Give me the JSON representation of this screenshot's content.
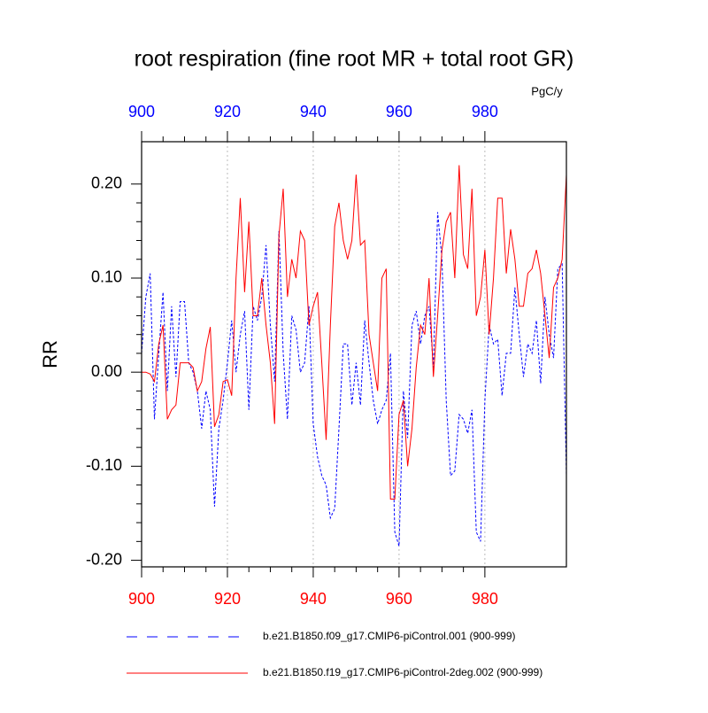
{
  "chart_data": {
    "type": "line",
    "title": "root respiration (fine root MR + total root GR)",
    "units": "PgC/y",
    "y_label": "RR",
    "x": [
      900,
      901,
      902,
      903,
      904,
      905,
      906,
      907,
      908,
      909,
      910,
      911,
      912,
      913,
      914,
      915,
      916,
      917,
      918,
      919,
      920,
      921,
      922,
      923,
      924,
      925,
      926,
      927,
      928,
      929,
      930,
      931,
      932,
      933,
      934,
      935,
      936,
      937,
      938,
      939,
      940,
      941,
      942,
      943,
      944,
      945,
      946,
      947,
      948,
      949,
      950,
      951,
      952,
      953,
      954,
      955,
      956,
      957,
      958,
      959,
      960,
      961,
      962,
      963,
      964,
      965,
      966,
      967,
      968,
      969,
      970,
      971,
      972,
      973,
      974,
      975,
      976,
      977,
      978,
      979,
      980,
      981,
      982,
      983,
      984,
      985,
      986,
      987,
      988,
      989,
      990,
      991,
      992,
      993,
      994,
      995,
      996,
      997,
      998,
      999
    ],
    "series": [
      {
        "name": "b.e21.B1850.f09_g17.CMIP6-piControl.001 (900-999)",
        "color": "#0000ff",
        "dash": true,
        "values": [
          0.02,
          0.08,
          0.105,
          -0.05,
          0.02,
          0.085,
          -0.02,
          0.07,
          -0.005,
          0.075,
          0.075,
          0.01,
          0.0,
          -0.02,
          -0.06,
          -0.02,
          -0.04,
          -0.143,
          -0.06,
          -0.03,
          0.01,
          0.055,
          0.0,
          0.04,
          0.065,
          -0.04,
          0.07,
          0.055,
          0.08,
          0.135,
          0.05,
          -0.01,
          0.15,
          0.02,
          -0.05,
          0.06,
          0.045,
          0.0,
          0.01,
          0.07,
          -0.055,
          -0.09,
          -0.11,
          -0.12,
          -0.155,
          -0.145,
          -0.06,
          0.03,
          0.03,
          -0.035,
          0.01,
          -0.035,
          0.055,
          0.01,
          -0.03,
          -0.055,
          -0.04,
          -0.03,
          0.02,
          -0.17,
          -0.185,
          -0.02,
          -0.07,
          0.05,
          0.065,
          0.03,
          0.06,
          0.07,
          0.005,
          0.17,
          0.12,
          -0.03,
          -0.11,
          -0.105,
          -0.045,
          -0.05,
          -0.065,
          -0.04,
          -0.17,
          -0.18,
          -0.03,
          0.05,
          0.03,
          0.035,
          -0.025,
          0.02,
          0.02,
          0.09,
          0.04,
          -0.005,
          0.03,
          0.02,
          0.055,
          -0.012,
          0.08,
          0.04,
          0.015,
          0.11,
          0.115,
          -0.11
        ]
      },
      {
        "name": "b.e21.B1850.f19_g17.CMIP6-piControl-2deg.002 (900-999)",
        "color": "#ff0000",
        "dash": false,
        "values": [
          0.0,
          0.0,
          -0.002,
          -0.01,
          0.03,
          0.05,
          -0.05,
          -0.04,
          -0.035,
          0.01,
          0.01,
          0.01,
          0.005,
          -0.02,
          -0.01,
          0.025,
          0.048,
          -0.058,
          -0.045,
          -0.01,
          -0.008,
          -0.025,
          0.1,
          0.185,
          0.085,
          0.16,
          0.06,
          0.06,
          0.1,
          0.05,
          0.01,
          -0.055,
          0.145,
          0.195,
          0.08,
          0.12,
          0.1,
          0.15,
          0.14,
          0.05,
          0.07,
          0.085,
          0.01,
          -0.072,
          0.05,
          0.155,
          0.18,
          0.14,
          0.12,
          0.14,
          0.21,
          0.135,
          0.14,
          0.04,
          0.01,
          -0.02,
          0.1,
          0.11,
          -0.135,
          -0.135,
          -0.045,
          -0.03,
          -0.1,
          -0.06,
          0.005,
          0.05,
          0.04,
          0.1,
          -0.005,
          0.06,
          0.13,
          0.16,
          0.17,
          0.1,
          0.22,
          0.125,
          0.11,
          0.195,
          0.06,
          0.08,
          0.13,
          0.04,
          0.1,
          0.185,
          0.185,
          0.105,
          0.152,
          0.12,
          0.07,
          0.07,
          0.105,
          0.11,
          0.13,
          0.105,
          0.06,
          0.015,
          0.09,
          0.1,
          0.12,
          0.21
        ]
      }
    ],
    "xlim": [
      900,
      999
    ],
    "ylim": [
      -0.207,
      0.245
    ],
    "xticks": [
      900,
      920,
      940,
      960,
      980
    ],
    "yticks": [
      {
        "value": -0.2,
        "label": "-0.20"
      },
      {
        "value": -0.1,
        "label": "-0.10"
      },
      {
        "value": 0,
        "label": "0.00"
      },
      {
        "value": 0.1,
        "label": "0.10"
      },
      {
        "value": 0.2,
        "label": "0.20"
      }
    ],
    "top_axis_color": "#0000ff",
    "bottom_axis_color": "#ff0000",
    "grid": true
  }
}
